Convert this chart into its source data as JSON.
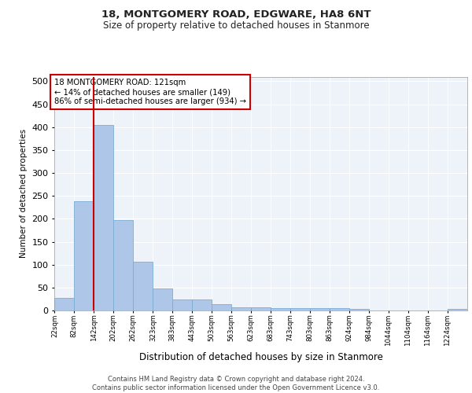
{
  "title_line1": "18, MONTGOMERY ROAD, EDGWARE, HA8 6NT",
  "title_line2": "Size of property relative to detached houses in Stanmore",
  "xlabel": "Distribution of detached houses by size in Stanmore",
  "ylabel": "Number of detached properties",
  "bar_labels": [
    "22sqm",
    "82sqm",
    "142sqm",
    "202sqm",
    "262sqm",
    "323sqm",
    "383sqm",
    "443sqm",
    "503sqm",
    "563sqm",
    "623sqm",
    "683sqm",
    "743sqm",
    "803sqm",
    "863sqm",
    "924sqm",
    "984sqm",
    "1044sqm",
    "1104sqm",
    "1164sqm",
    "1224sqm"
  ],
  "bar_values": [
    28,
    238,
    405,
    198,
    106,
    48,
    24,
    24,
    13,
    7,
    7,
    5,
    5,
    5,
    5,
    4,
    0,
    0,
    0,
    0,
    4
  ],
  "bar_color": "#aec6e8",
  "bar_edge_color": "#7aadd4",
  "background_color": "#eef2f9",
  "grid_color": "#ffffff",
  "annotation_box_text_line1": "18 MONTGOMERY ROAD: 121sqm",
  "annotation_box_text_line2": "← 14% of detached houses are smaller (149)",
  "annotation_box_text_line3": "86% of semi-detached houses are larger (934) →",
  "annotation_box_color": "#ffffff",
  "annotation_box_edge_color": "#cc0000",
  "vline_color": "#cc0000",
  "vline_x": 142,
  "footer_line1": "Contains HM Land Registry data © Crown copyright and database right 2024.",
  "footer_line2": "Contains public sector information licensed under the Open Government Licence v3.0.",
  "ylim": [
    0,
    510
  ],
  "bin_width": 60,
  "bin_starts": [
    22,
    82,
    142,
    202,
    262,
    323,
    383,
    443,
    503,
    563,
    623,
    683,
    743,
    803,
    863,
    924,
    984,
    1044,
    1104,
    1164,
    1224
  ]
}
